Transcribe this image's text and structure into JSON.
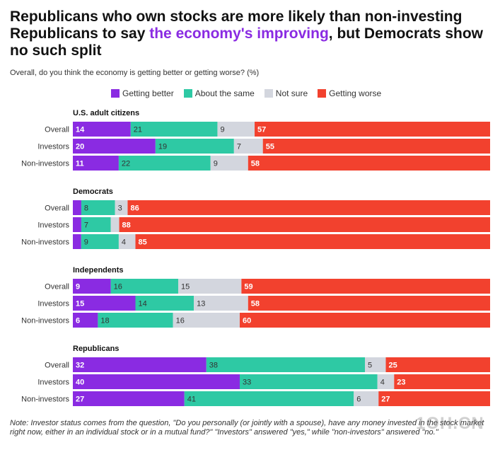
{
  "header": {
    "title_part1": "Republicans who own stocks are more likely than non-investing Republicans to say ",
    "title_highlight": "the economy's improving",
    "title_part2": ", but Democrats show no such split",
    "subtitle": "Overall, do you think the economy is getting better or getting worse? (%)"
  },
  "chart_data": {
    "type": "bar",
    "orientation": "horizontal",
    "stacked": true,
    "series": [
      {
        "name": "Getting better",
        "color": "#8a2be2"
      },
      {
        "name": "About the same",
        "color": "#2ec9a4"
      },
      {
        "name": "Not sure",
        "color": "#d3d6de"
      },
      {
        "name": "Getting worse",
        "color": "#f2412e"
      }
    ],
    "groups": [
      {
        "label": "U.S. adult citizens",
        "rows": [
          {
            "label": "Overall",
            "values": [
              14,
              21,
              9,
              57
            ]
          },
          {
            "label": "Investors",
            "values": [
              20,
              19,
              7,
              55
            ]
          },
          {
            "label": "Non-investors",
            "values": [
              11,
              22,
              9,
              58
            ]
          }
        ]
      },
      {
        "label": "Democrats",
        "rows": [
          {
            "label": "Overall",
            "values": [
              2,
              8,
              3,
              86
            ]
          },
          {
            "label": "Investors",
            "values": [
              2,
              7,
              2,
              88
            ]
          },
          {
            "label": "Non-investors",
            "values": [
              2,
              9,
              4,
              85
            ]
          }
        ]
      },
      {
        "label": "Independents",
        "rows": [
          {
            "label": "Overall",
            "values": [
              9,
              16,
              15,
              59
            ]
          },
          {
            "label": "Investors",
            "values": [
              15,
              14,
              13,
              58
            ]
          },
          {
            "label": "Non-investors",
            "values": [
              6,
              18,
              16,
              60
            ]
          }
        ]
      },
      {
        "label": "Republicans",
        "rows": [
          {
            "label": "Overall",
            "values": [
              32,
              38,
              5,
              25
            ]
          },
          {
            "label": "Investors",
            "values": [
              40,
              33,
              4,
              23
            ]
          },
          {
            "label": "Non-investors",
            "values": [
              27,
              41,
              6,
              27
            ]
          }
        ]
      }
    ],
    "label_min_value": 3
  },
  "footer": {
    "note": "Note: Investor status comes from the question, \"Do you personally (or jointly with a spouse), have any money invested in the stock market right now, either in an individual stock or in a mutual fund?\" \"Investors\" answered \"yes,\" while \"non-investors\" answered \"no.\"",
    "watermark": "1OH.CN"
  }
}
